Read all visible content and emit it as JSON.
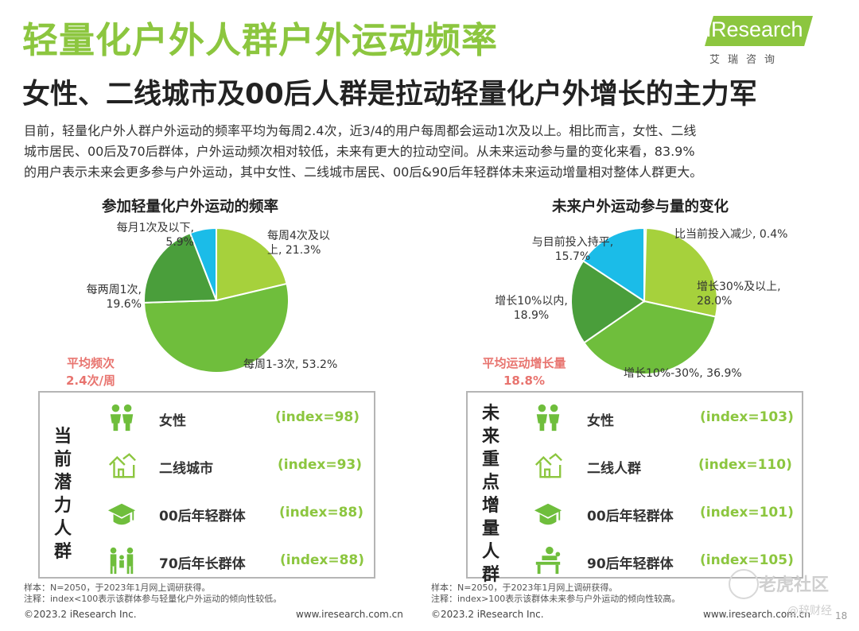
{
  "header": {
    "title": "轻量化户外人群户外运动频率",
    "subtitle": "女性、二线城市及00后人群是拉动轻量化户外增长的主力军",
    "logo_text": "iResearch",
    "logo_cn": "艾瑞咨询"
  },
  "paragraph": {
    "line1": "目前，轻量化户外人群户外运动的频率平均为每周2.4次，近3/4的用户每周都会运动1次及以上。相比而言，女性、二线",
    "line2": "城市居民、00后及70后群体，户外运动频次相对较低，未来有更大的拉动空间。从未来运动参与量的变化来看，83.9%",
    "line3": "的用户表示未来会更多参与户外运动，其中女性、二线城市居民、00后&90后年轻群体未来运动增量相对整体人群更大。"
  },
  "chart_data": [
    {
      "type": "pie",
      "title": "参加轻量化户外运动的频率",
      "slices": [
        {
          "label": "每周4次及以上",
          "value": 21.3,
          "color": "#a6d13c"
        },
        {
          "label": "每周1-3次",
          "value": 53.2,
          "color": "#6fbe3c"
        },
        {
          "label": "每两周1次",
          "value": 19.6,
          "color": "#4a9e3b"
        },
        {
          "label": "每月1次及以下",
          "value": 5.9,
          "color": "#1bbce8"
        }
      ],
      "labels": {
        "s0a": "每周4次及以",
        "s0b": "上, 21.3%",
        "s1": "每周1-3次, 53.2%",
        "s2a": "每两周1次,",
        "s2b": "19.6%",
        "s3a": "每月1次及以下,",
        "s3b": "5.9%"
      },
      "average": {
        "line1": "平均频次",
        "line2": "2.4次/周"
      }
    },
    {
      "type": "pie",
      "title": "未来户外运动参与量的变化",
      "slices": [
        {
          "label": "比当前投入减少",
          "value": 0.4,
          "color": "#6fbe3c"
        },
        {
          "label": "增长30%及以上",
          "value": 28.0,
          "color": "#a6d13c"
        },
        {
          "label": "增长10%-30%",
          "value": 36.9,
          "color": "#6fbe3c"
        },
        {
          "label": "增长10%以内",
          "value": 18.9,
          "color": "#4a9e3b"
        },
        {
          "label": "与目前投入持平",
          "value": 15.7,
          "color": "#1bbce8"
        }
      ],
      "labels": {
        "s0": "比当前投入减少, 0.4%",
        "s1a": "增长30%及以上,",
        "s1b": "28.0%",
        "s2": "增长10%-30%, 36.9%",
        "s3a": "增长10%以内,",
        "s3b": "18.9%",
        "s4a": "与目前投入持平,",
        "s4b": "15.7%"
      },
      "average": {
        "line1": "平均运动增长量",
        "line2": "18.8%"
      }
    }
  ],
  "left_panel": {
    "label_chars": [
      "当",
      "前",
      "潜",
      "力",
      "人",
      "群"
    ],
    "rows": [
      {
        "icon": "people-icon",
        "name": "女性",
        "index": "(index=98)"
      },
      {
        "icon": "house-icon",
        "name": "二线城市",
        "index": "(index=93)"
      },
      {
        "icon": "graduation-cap-icon",
        "name": "00后年轻群体",
        "index": "(index=88)"
      },
      {
        "icon": "family-icon",
        "name": "70后年长群体",
        "index": "(index=88)"
      }
    ]
  },
  "right_panel": {
    "label_chars": [
      "未",
      "来",
      "重",
      "点",
      "增",
      "量",
      "人",
      "群"
    ],
    "rows": [
      {
        "icon": "people-icon",
        "name": "女性",
        "index": "(index=103)"
      },
      {
        "icon": "house-icon",
        "name": "二线人群",
        "index": "(index=110)"
      },
      {
        "icon": "graduation-cap-icon",
        "name": "00后年轻群体",
        "index": "(index=101)"
      },
      {
        "icon": "worker-icon",
        "name": "90后年轻群体",
        "index": "(index=105)"
      }
    ]
  },
  "notes": {
    "left_sample": "样本：N=2050，于2023年1月网上调研获得。",
    "left_note": "注释：index<100表示该群体参与轻量化户外运动的倾向性较低。",
    "right_sample": "样本：N=2050，于2023年1月网上调研获得。",
    "right_note": "注释：index>100表示该群体未来参与户外运动的倾向性较高。"
  },
  "footer": {
    "left_copyright": "©2023.2 iResearch Inc.",
    "left_url": "www.iresearch.com.cn",
    "right_copyright": "©2023.2 iResearch Inc.",
    "right_url": "www.iresearch.com.cn",
    "page": "18"
  },
  "watermark": {
    "main": "老虎社区",
    "sub": "@辞财经"
  }
}
